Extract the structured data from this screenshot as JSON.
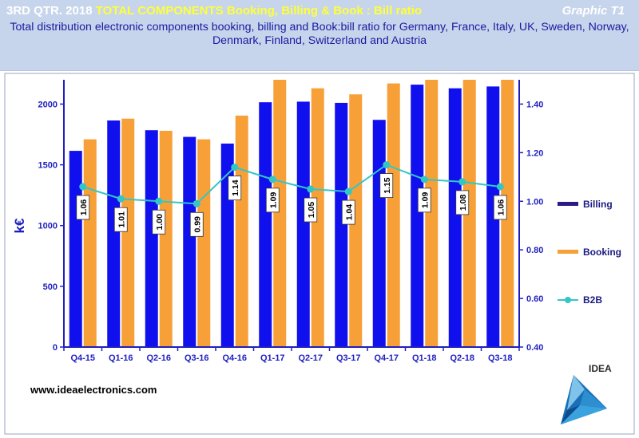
{
  "header": {
    "title_main": "3RD QTR. 2018",
    "title_highlight": "TOTAL COMPONENTS Booking,  Billing  & Book : Bill ratio",
    "graphic_label": "Graphic T1",
    "subtitle": "Total distribution electronic components booking, billing and Book:bill ratio for Germany,  France, Italy, UK, Sweden, Norway, Denmark, Finland, Switzerland and Austria"
  },
  "footer": {
    "website": "www.ideaelectronics.com",
    "logo_text": "IDEA"
  },
  "colors": {
    "billing": "#1010ee",
    "booking": "#f7a038",
    "b2b_line": "#33c6c6",
    "axis": "#1f1fc0"
  },
  "chart_data": {
    "type": "bar",
    "categories": [
      "Q4-15",
      "Q1-16",
      "Q2-16",
      "Q3-16",
      "Q4-16",
      "Q1-17",
      "Q2-17",
      "Q3-17",
      "Q4-17",
      "Q1-18",
      "Q2-18",
      "Q3-18"
    ],
    "series": [
      {
        "name": "Billing",
        "type": "bar",
        "axis": "left",
        "values": [
          1615,
          1865,
          1785,
          1730,
          1675,
          2015,
          2020,
          2010,
          1870,
          2160,
          2130,
          2145
        ]
      },
      {
        "name": "Booking",
        "type": "bar",
        "axis": "left",
        "values": [
          1710,
          1880,
          1780,
          1710,
          1905,
          2200,
          2130,
          2080,
          2170,
          2200,
          2200,
          2200
        ]
      },
      {
        "name": "B2B",
        "type": "line",
        "axis": "right",
        "values": [
          1.06,
          1.01,
          1.0,
          0.99,
          1.14,
          1.09,
          1.05,
          1.04,
          1.15,
          1.09,
          1.08,
          1.06
        ]
      }
    ],
    "data_labels": [
      "1.06",
      "1.01",
      "1.00",
      "0.99",
      "1.14",
      "1.09",
      "1.05",
      "1.04",
      "1.15",
      "1.09",
      "1.08",
      "1.06"
    ],
    "ylabel": "k€",
    "ylim": [
      0,
      2200
    ],
    "yticks": [
      0,
      500,
      1000,
      1500,
      2000
    ],
    "ytick_labels": [
      "0",
      "500",
      "1000",
      "1500",
      "2000"
    ],
    "y2lim": [
      0.4,
      1.5
    ],
    "y2ticks": [
      0.4,
      0.6,
      0.8,
      1.0,
      1.2,
      1.4
    ],
    "y2tick_labels": [
      "0.40",
      "0.60",
      "0.80",
      "1.00",
      "1.20",
      "1.40"
    ],
    "legend": [
      {
        "label": "Billing",
        "kind": "bar"
      },
      {
        "label": "Booking",
        "kind": "bar"
      },
      {
        "label": "B2B",
        "kind": "line"
      }
    ],
    "legend_position": "right",
    "grid": false
  }
}
